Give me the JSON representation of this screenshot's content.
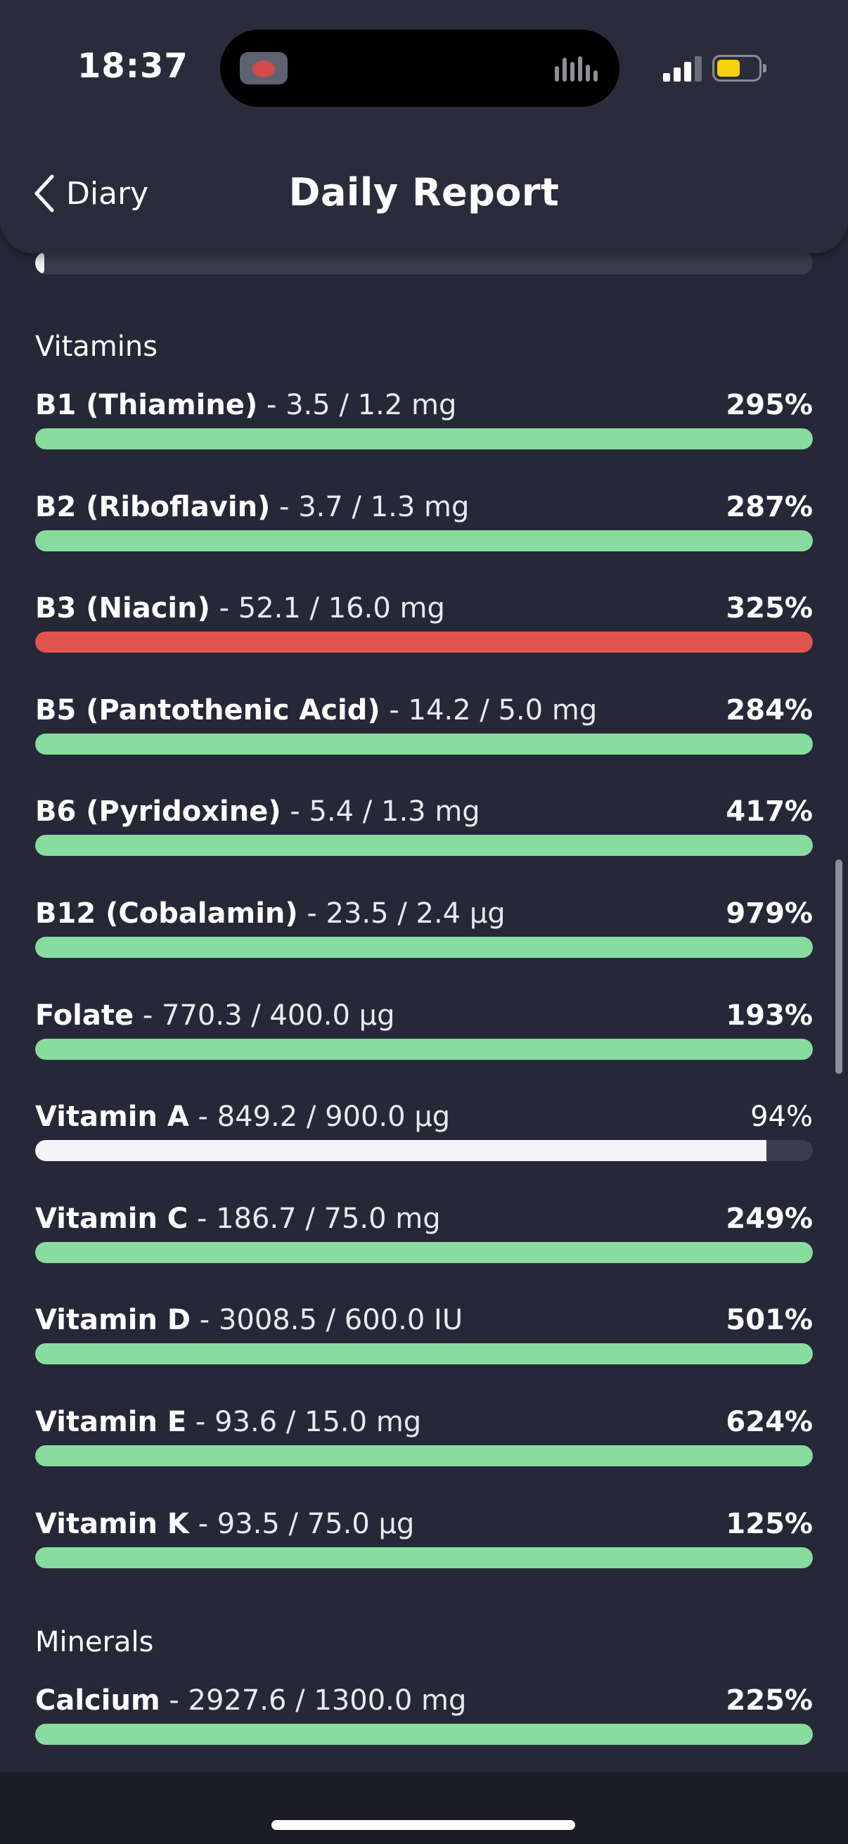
{
  "status_bar": {
    "time": "18:37"
  },
  "header": {
    "back_label": "Diary",
    "title": "Daily Report"
  },
  "top_progress": {
    "fraction": 0.012
  },
  "colors": {
    "green": "#88dca0",
    "red": "#e2534b",
    "white": "#f4f4f6",
    "track": "#3b3d4c",
    "background": "#262838"
  },
  "sections": [
    {
      "title": "Vitamins",
      "items": [
        {
          "name": "B1 (Thiamine)",
          "amount": " - 3.5 / 1.2 mg",
          "percent": "295%",
          "fraction": 1.0,
          "status": "green"
        },
        {
          "name": "B2 (Riboflavin)",
          "amount": " - 3.7 / 1.3 mg",
          "percent": "287%",
          "fraction": 1.0,
          "status": "green"
        },
        {
          "name": "B3 (Niacin)",
          "amount": " - 52.1 / 16.0 mg",
          "percent": "325%",
          "fraction": 1.0,
          "status": "red"
        },
        {
          "name": "B5 (Pantothenic Acid)",
          "amount": " - 14.2 / 5.0 mg",
          "percent": "284%",
          "fraction": 1.0,
          "status": "green"
        },
        {
          "name": "B6 (Pyridoxine)",
          "amount": " - 5.4 / 1.3 mg",
          "percent": "417%",
          "fraction": 1.0,
          "status": "green"
        },
        {
          "name": "B12 (Cobalamin)",
          "amount": " - 23.5 / 2.4 µg",
          "percent": "979%",
          "fraction": 1.0,
          "status": "green"
        },
        {
          "name": "Folate",
          "amount": " - 770.3 / 400.0 µg",
          "percent": "193%",
          "fraction": 1.0,
          "status": "green"
        },
        {
          "name": "Vitamin A",
          "amount": " - 849.2 / 900.0 µg",
          "percent": "94%",
          "fraction": 0.94,
          "status": "white"
        },
        {
          "name": "Vitamin C",
          "amount": " - 186.7 / 75.0 mg",
          "percent": "249%",
          "fraction": 1.0,
          "status": "green"
        },
        {
          "name": "Vitamin D",
          "amount": " - 3008.5 / 600.0 IU",
          "percent": "501%",
          "fraction": 1.0,
          "status": "green"
        },
        {
          "name": "Vitamin E",
          "amount": " - 93.6 / 15.0 mg",
          "percent": "624%",
          "fraction": 1.0,
          "status": "green"
        },
        {
          "name": "Vitamin K",
          "amount": " - 93.5 / 75.0 µg",
          "percent": "125%",
          "fraction": 1.0,
          "status": "green"
        }
      ]
    },
    {
      "title": "Minerals",
      "items": [
        {
          "name": "Calcium",
          "amount": " - 2927.6 / 1300.0 mg",
          "percent": "225%",
          "fraction": 1.0,
          "status": "green"
        }
      ]
    }
  ]
}
